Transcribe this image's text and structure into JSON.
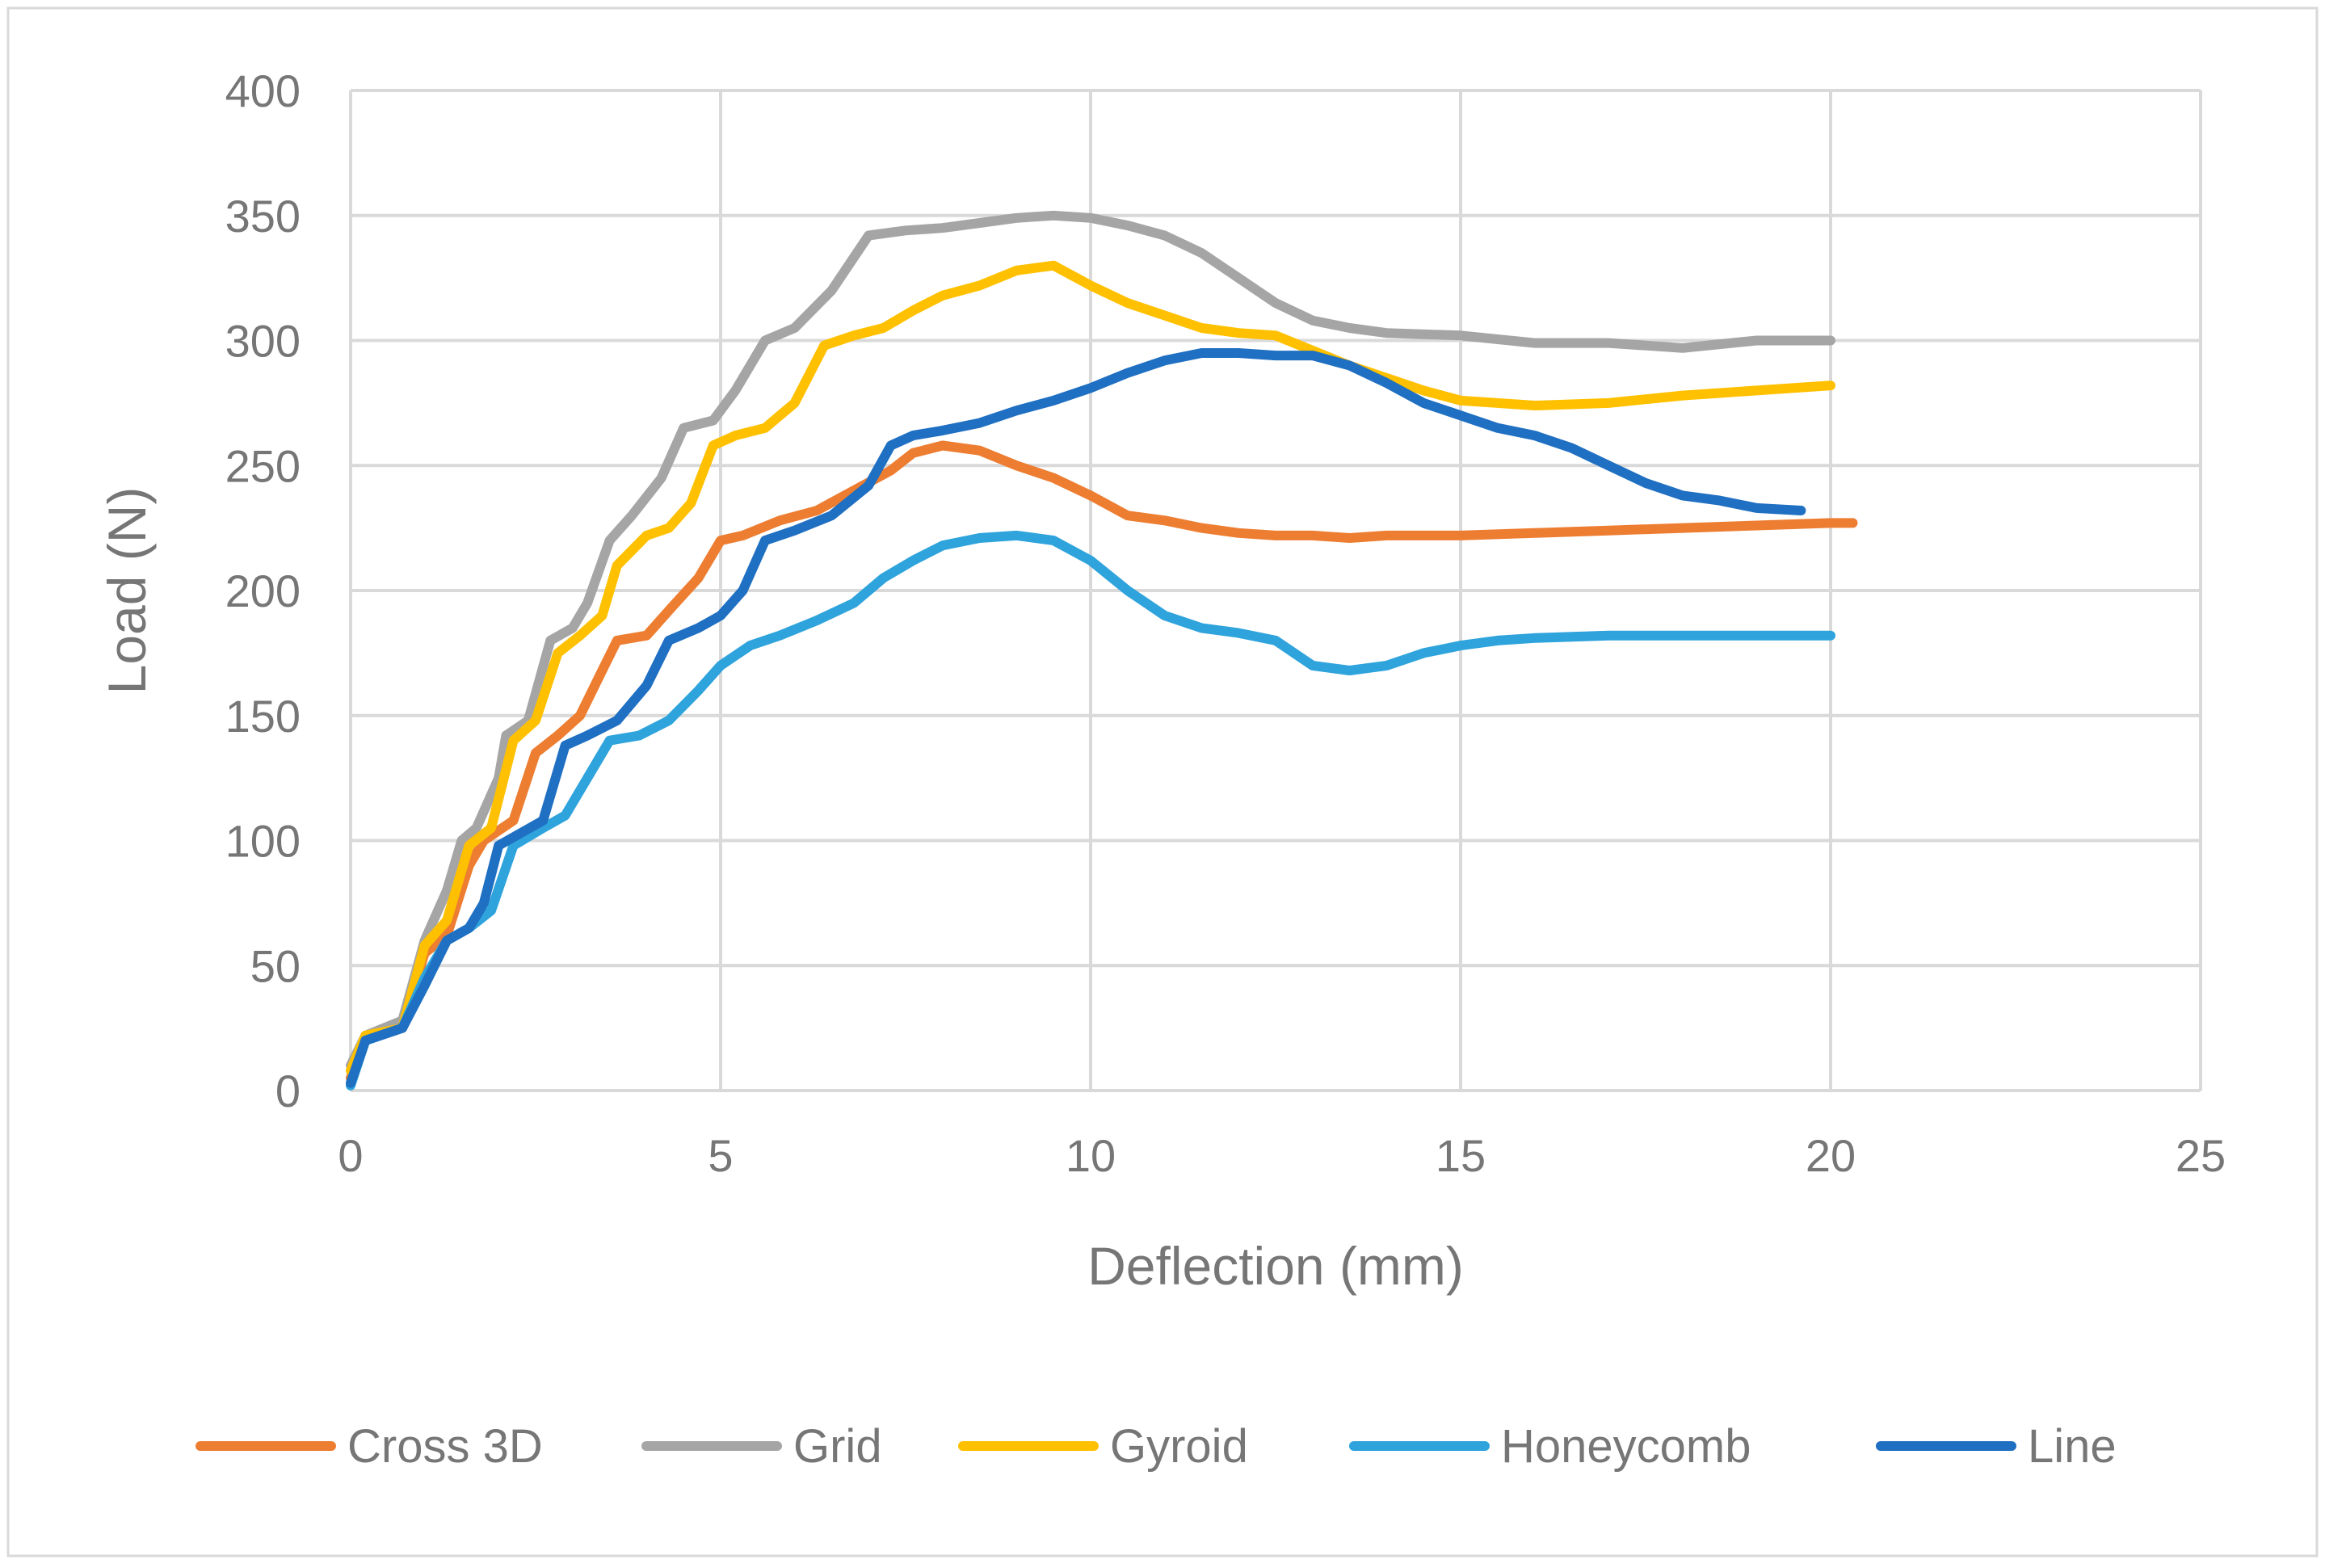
{
  "chart_data": {
    "type": "line",
    "title": "",
    "xlabel": "Deflection (mm)",
    "ylabel": "Load (N)",
    "xlim": [
      0,
      25
    ],
    "ylim": [
      0,
      400
    ],
    "xticks": [
      0,
      5,
      10,
      15,
      20,
      25
    ],
    "yticks": [
      0,
      50,
      100,
      150,
      200,
      250,
      300,
      350,
      400
    ],
    "grid": true,
    "legend_position": "bottom",
    "series": [
      {
        "name": "Cross 3D",
        "color": "#ED7D31",
        "x": [
          0,
          0.2,
          0.7,
          1.0,
          1.3,
          1.6,
          1.8,
          2.2,
          2.5,
          2.8,
          3.1,
          3.4,
          3.6,
          4.0,
          4.3,
          4.7,
          5.0,
          5.3,
          5.8,
          6.3,
          6.8,
          7.3,
          7.6,
          8.0,
          8.5,
          9.0,
          9.5,
          10.0,
          10.5,
          11.0,
          11.5,
          12.0,
          12.5,
          13.0,
          13.5,
          14.0,
          15.0,
          16.0,
          17.0,
          18.0,
          19.0,
          20.0,
          20.3
        ],
        "y": [
          5,
          22,
          25,
          55,
          62,
          90,
          100,
          108,
          135,
          142,
          150,
          168,
          180,
          182,
          192,
          205,
          220,
          222,
          228,
          232,
          240,
          248,
          255,
          258,
          256,
          250,
          245,
          238,
          230,
          228,
          225,
          223,
          222,
          222,
          221,
          222,
          222,
          223,
          224,
          225,
          226,
          227,
          227
        ]
      },
      {
        "name": "Grid",
        "color": "#A5A5A5",
        "x": [
          0,
          0.2,
          0.7,
          1.0,
          1.3,
          1.5,
          1.7,
          2.0,
          2.1,
          2.4,
          2.7,
          3.0,
          3.2,
          3.5,
          3.8,
          4.2,
          4.5,
          4.9,
          5.2,
          5.6,
          6.0,
          6.5,
          7.0,
          7.5,
          8.0,
          8.5,
          9.0,
          9.5,
          10.0,
          10.5,
          11.0,
          11.5,
          12.0,
          12.5,
          13.0,
          13.5,
          14.0,
          15.0,
          16.0,
          17.0,
          17.5,
          18.0,
          19.0,
          20.0
        ],
        "y": [
          10,
          22,
          28,
          60,
          80,
          100,
          105,
          125,
          142,
          148,
          180,
          185,
          195,
          220,
          230,
          245,
          265,
          268,
          280,
          300,
          305,
          320,
          342,
          344,
          345,
          347,
          349,
          350,
          349,
          346,
          342,
          335,
          325,
          315,
          308,
          305,
          303,
          302,
          299,
          299,
          298,
          297,
          300,
          300
        ]
      },
      {
        "name": "Gyroid",
        "color": "#FFC000",
        "x": [
          0,
          0.2,
          0.7,
          1.0,
          1.3,
          1.6,
          1.9,
          2.2,
          2.5,
          2.8,
          3.1,
          3.4,
          3.6,
          4.0,
          4.3,
          4.6,
          4.9,
          5.2,
          5.6,
          6.0,
          6.4,
          6.8,
          7.2,
          7.6,
          8.0,
          8.5,
          9.0,
          9.5,
          10.0,
          10.5,
          11.0,
          11.5,
          12.0,
          12.5,
          13.0,
          13.5,
          14.0,
          14.5,
          15.0,
          16.0,
          17.0,
          18.0,
          19.0,
          20.0
        ],
        "y": [
          8,
          22,
          25,
          58,
          68,
          98,
          105,
          140,
          148,
          175,
          182,
          190,
          210,
          222,
          225,
          235,
          258,
          262,
          265,
          275,
          298,
          302,
          305,
          312,
          318,
          322,
          328,
          330,
          322,
          315,
          310,
          305,
          303,
          302,
          296,
          290,
          285,
          280,
          276,
          274,
          275,
          278,
          280,
          282
        ]
      },
      {
        "name": "Honeycomb",
        "color": "#2EA3DC",
        "x": [
          0,
          0.2,
          0.7,
          1.0,
          1.3,
          1.6,
          1.9,
          2.2,
          2.6,
          2.9,
          3.2,
          3.5,
          3.9,
          4.3,
          4.7,
          5.0,
          5.4,
          5.8,
          6.3,
          6.8,
          7.2,
          7.6,
          8.0,
          8.5,
          9.0,
          9.5,
          10.0,
          10.5,
          11.0,
          11.5,
          12.0,
          12.5,
          13.0,
          13.5,
          14.0,
          14.5,
          15.0,
          15.5,
          16.0,
          17.0,
          18.0,
          19.0,
          20.0
        ],
        "y": [
          2,
          20,
          25,
          45,
          60,
          65,
          72,
          98,
          105,
          110,
          125,
          140,
          142,
          148,
          160,
          170,
          178,
          182,
          188,
          195,
          205,
          212,
          218,
          221,
          222,
          220,
          212,
          200,
          190,
          185,
          183,
          180,
          170,
          168,
          170,
          175,
          178,
          180,
          181,
          182,
          182,
          182,
          182
        ]
      },
      {
        "name": "Line",
        "color": "#1F6FC2",
        "x": [
          0,
          0.2,
          0.7,
          1.0,
          1.3,
          1.6,
          1.8,
          2.0,
          2.3,
          2.6,
          2.9,
          3.2,
          3.6,
          4.0,
          4.3,
          4.7,
          5.0,
          5.3,
          5.6,
          6.0,
          6.5,
          7.0,
          7.3,
          7.6,
          8.0,
          8.5,
          9.0,
          9.5,
          10.0,
          10.5,
          11.0,
          11.5,
          12.0,
          12.5,
          13.0,
          13.5,
          14.0,
          14.5,
          15.0,
          15.5,
          16.0,
          16.5,
          17.0,
          17.5,
          18.0,
          18.5,
          19.0,
          19.6
        ],
        "y": [
          3,
          20,
          25,
          42,
          60,
          65,
          75,
          98,
          103,
          108,
          138,
          142,
          148,
          162,
          180,
          185,
          190,
          200,
          220,
          224,
          230,
          242,
          258,
          262,
          264,
          267,
          272,
          276,
          281,
          287,
          292,
          295,
          295,
          294,
          294,
          290,
          283,
          275,
          270,
          265,
          262,
          257,
          250,
          243,
          238,
          236,
          233,
          232
        ]
      }
    ]
  }
}
